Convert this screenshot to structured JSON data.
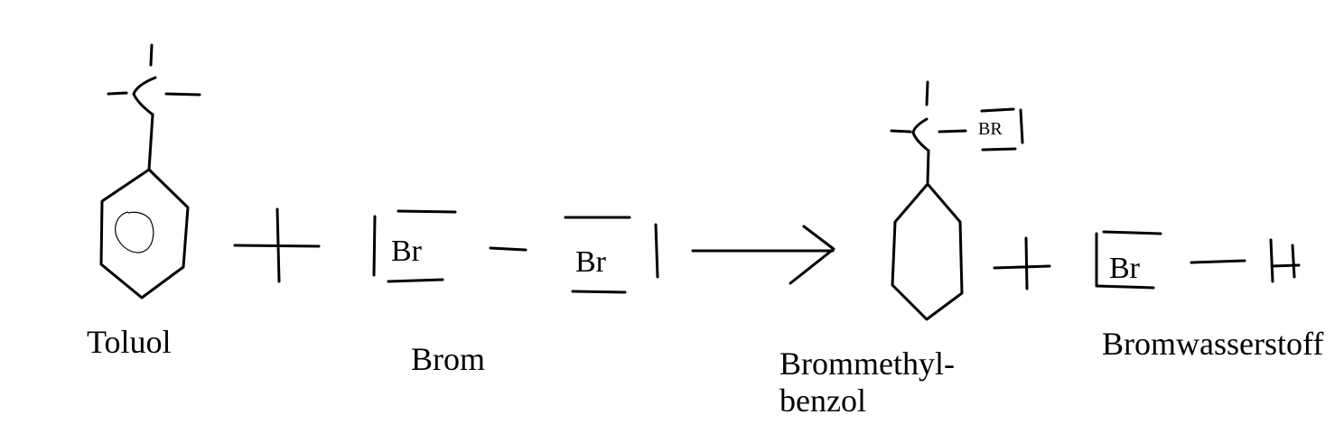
{
  "reaction": {
    "reactant_1": {
      "name": "Toluol"
    },
    "reactant_2": {
      "name": "Brom",
      "atom_left": "Br",
      "atom_right": "Br"
    },
    "product_1": {
      "name_line_1": "Brommethyl-",
      "name_line_2": "benzol",
      "substituent": "BR"
    },
    "product_2": {
      "name": "Bromwasserstoff",
      "atom": "Br"
    }
  }
}
